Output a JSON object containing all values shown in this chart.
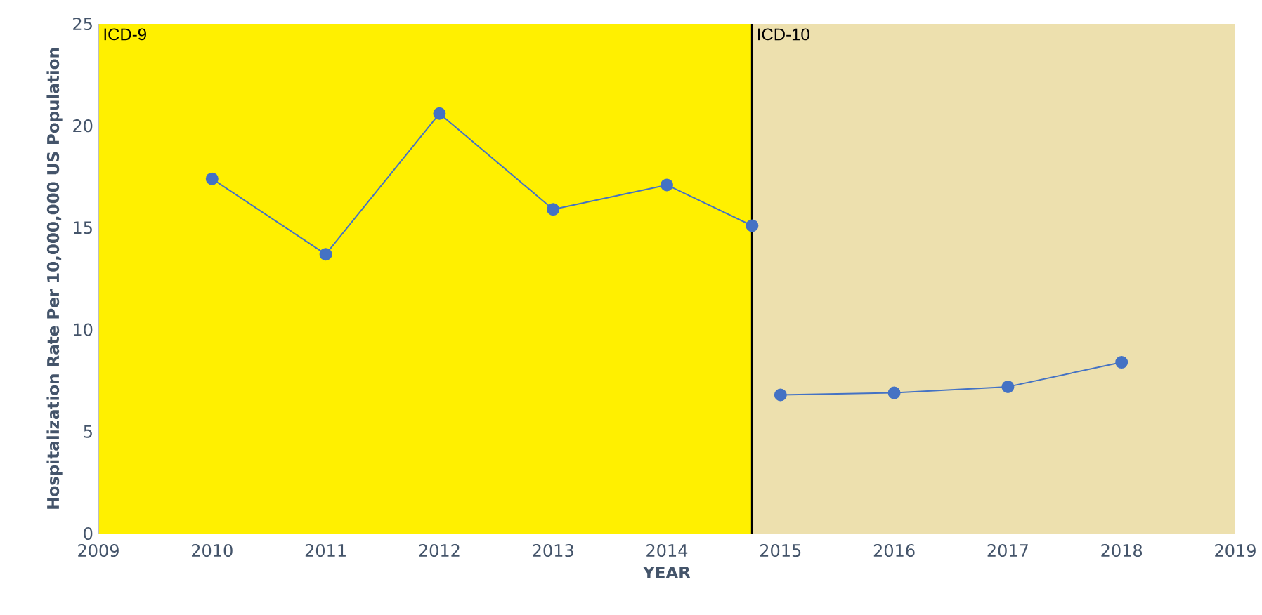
{
  "chart_data": {
    "type": "line",
    "xlabel": "YEAR",
    "ylabel": "Hospitalization Rate Per 10,000,000 US Population",
    "series": [
      {
        "color": "#4472c4",
        "x": [
          2010,
          2011,
          2012,
          2013,
          2014,
          2014.75
        ],
        "values": [
          17.4,
          13.7,
          20.6,
          15.9,
          17.1,
          15.1
        ]
      },
      {
        "color": "#4472c4",
        "x": [
          2015,
          2016,
          2017,
          2018
        ],
        "values": [
          6.8,
          6.9,
          7.2,
          8.4
        ]
      }
    ],
    "xlim": [
      2009,
      2019
    ],
    "xticks": [
      2009,
      2010,
      2011,
      2012,
      2013,
      2014,
      2015,
      2016,
      2017,
      2018,
      2019
    ],
    "ylim": [
      0,
      25
    ],
    "yticks": [
      0,
      5,
      10,
      15,
      20,
      25
    ],
    "bands": [
      {
        "axis": "x",
        "from": 2009,
        "to": 2014.75,
        "label": "ICD-9",
        "color": "#fff000"
      },
      {
        "axis": "x",
        "from": 2014.75,
        "to": 2019,
        "label": "ICD-10",
        "color": "#ede0ae"
      }
    ],
    "ref_lines": [
      {
        "axis": "x",
        "value": 2014.75,
        "color": "#000000"
      }
    ],
    "marker": "circle",
    "line_style": "solid",
    "grid": false,
    "legend": false
  }
}
